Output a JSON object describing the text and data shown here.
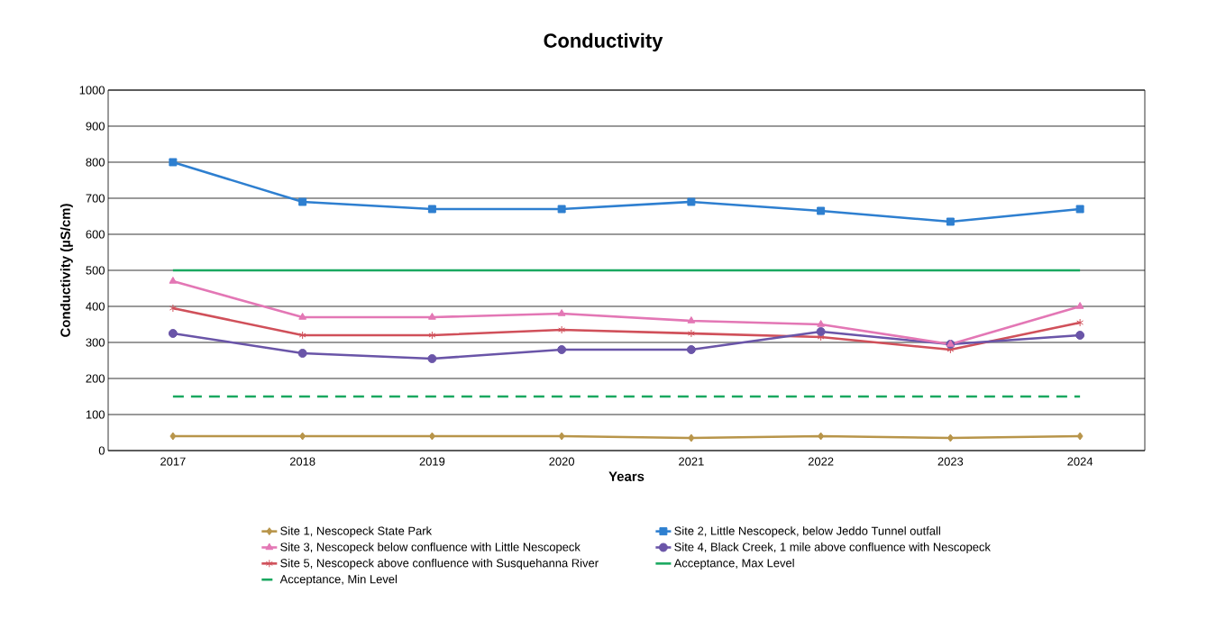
{
  "chart_data": {
    "type": "line",
    "title": "Conductivity",
    "xlabel": "Years",
    "ylabel": "Conductivity  (µS/cm)",
    "categories": [
      "2017",
      "2018",
      "2019",
      "2020",
      "2021",
      "2022",
      "2023",
      "2024"
    ],
    "ylim": [
      0,
      1000
    ],
    "yticks": [
      0,
      100,
      200,
      300,
      400,
      500,
      600,
      700,
      800,
      900,
      1000
    ],
    "grid": "y",
    "legend": "bottom",
    "series": [
      {
        "name": "Site 1, Nescopeck State Park",
        "color": "#b8954a",
        "marker": "diamond",
        "values": [
          40,
          40,
          40,
          40,
          35,
          40,
          35,
          40
        ]
      },
      {
        "name": "Site 2, Little Nescopeck, below Jeddo Tunnel outfall",
        "color": "#2e7fd0",
        "marker": "square",
        "values": [
          800,
          690,
          670,
          670,
          690,
          665,
          635,
          670
        ]
      },
      {
        "name": "Site 3, Nescopeck below confluence with Little Nescopeck",
        "color": "#e377b5",
        "marker": "triangle",
        "values": [
          470,
          370,
          370,
          380,
          360,
          350,
          295,
          400
        ]
      },
      {
        "name": "Site 4, Black Creek, 1 mile above confluence with Nescopeck",
        "color": "#6a55a8",
        "marker": "circle",
        "values": [
          325,
          270,
          255,
          280,
          280,
          330,
          295,
          320
        ]
      },
      {
        "name": "Site 5, Nescopeck above confluence with Susquehanna River",
        "color": "#d0505a",
        "marker": "cross",
        "values": [
          395,
          320,
          320,
          335,
          325,
          315,
          280,
          355
        ]
      },
      {
        "name": "Acceptance, Max Level",
        "color": "#1aa860",
        "marker": "none",
        "values": [
          500,
          500,
          500,
          500,
          500,
          500,
          500,
          500
        ]
      },
      {
        "name": "Acceptance, Min Level",
        "color": "#1aa860",
        "marker": "none",
        "line_style": "dashed",
        "values": [
          150,
          150,
          150,
          150,
          150,
          150,
          150,
          150
        ]
      }
    ]
  }
}
